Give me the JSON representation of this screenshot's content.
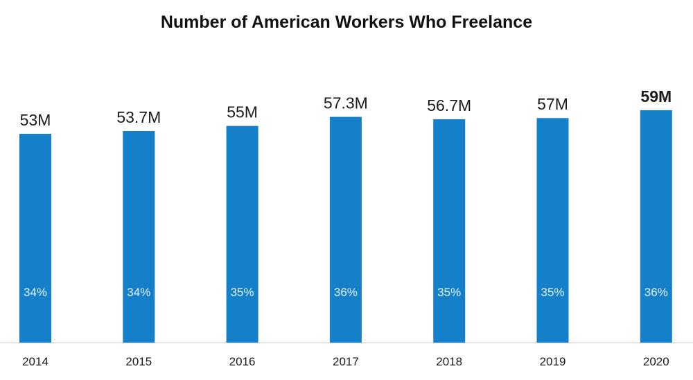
{
  "chart_data": {
    "type": "bar",
    "title": "Number of American Workers Who Freelance",
    "xlabel": "",
    "ylabel": "",
    "categories": [
      "2014",
      "2015",
      "2016",
      "2017",
      "2018",
      "2019",
      "2020"
    ],
    "values": [
      53,
      53.7,
      55,
      57.3,
      56.7,
      57,
      59
    ],
    "value_labels": [
      "53M",
      "53.7M",
      "55M",
      "57.3M",
      "56.7M",
      "57M",
      "59M"
    ],
    "percent_labels": [
      "34%",
      "34%",
      "35%",
      "36%",
      "35%",
      "35%",
      "36%"
    ],
    "emphasized_index": 6,
    "ylim": [
      0,
      60
    ],
    "grid": false,
    "legend": "none",
    "bar_color": "#1380c9"
  }
}
